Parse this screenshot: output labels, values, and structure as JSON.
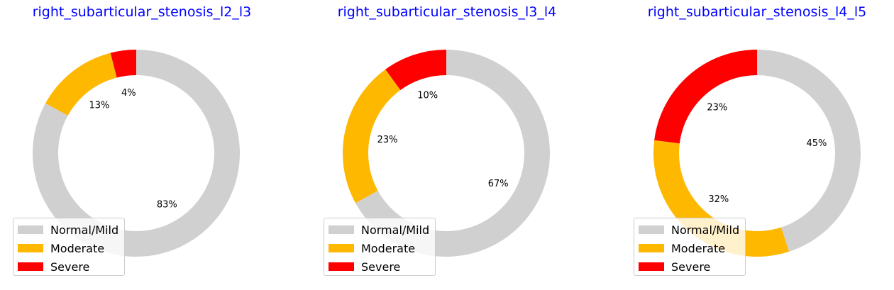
{
  "chart_data": [
    {
      "type": "pie",
      "title": "right_subarticular_stenosis_l2_l3",
      "categories": [
        "Normal/Mild",
        "Moderate",
        "Severe"
      ],
      "values": [
        83,
        13,
        4
      ],
      "labels": [
        "83%",
        "13%",
        "4%"
      ],
      "colors": [
        "#d0d0d0",
        "#ffb800",
        "#ff0000"
      ],
      "legend": "lower-left",
      "donut": true
    },
    {
      "type": "pie",
      "title": "right_subarticular_stenosis_l3_l4",
      "categories": [
        "Normal/Mild",
        "Moderate",
        "Severe"
      ],
      "values": [
        67,
        23,
        10
      ],
      "labels": [
        "67%",
        "23%",
        "10%"
      ],
      "colors": [
        "#d0d0d0",
        "#ffb800",
        "#ff0000"
      ],
      "legend": "lower-left",
      "donut": true
    },
    {
      "type": "pie",
      "title": "right_subarticular_stenosis_l4_l5",
      "categories": [
        "Normal/Mild",
        "Moderate",
        "Severe"
      ],
      "values": [
        45,
        32,
        23
      ],
      "labels": [
        "45%",
        "32%",
        "23%"
      ],
      "colors": [
        "#d0d0d0",
        "#ffb800",
        "#ff0000"
      ],
      "legend": "lower-left",
      "donut": true
    }
  ]
}
